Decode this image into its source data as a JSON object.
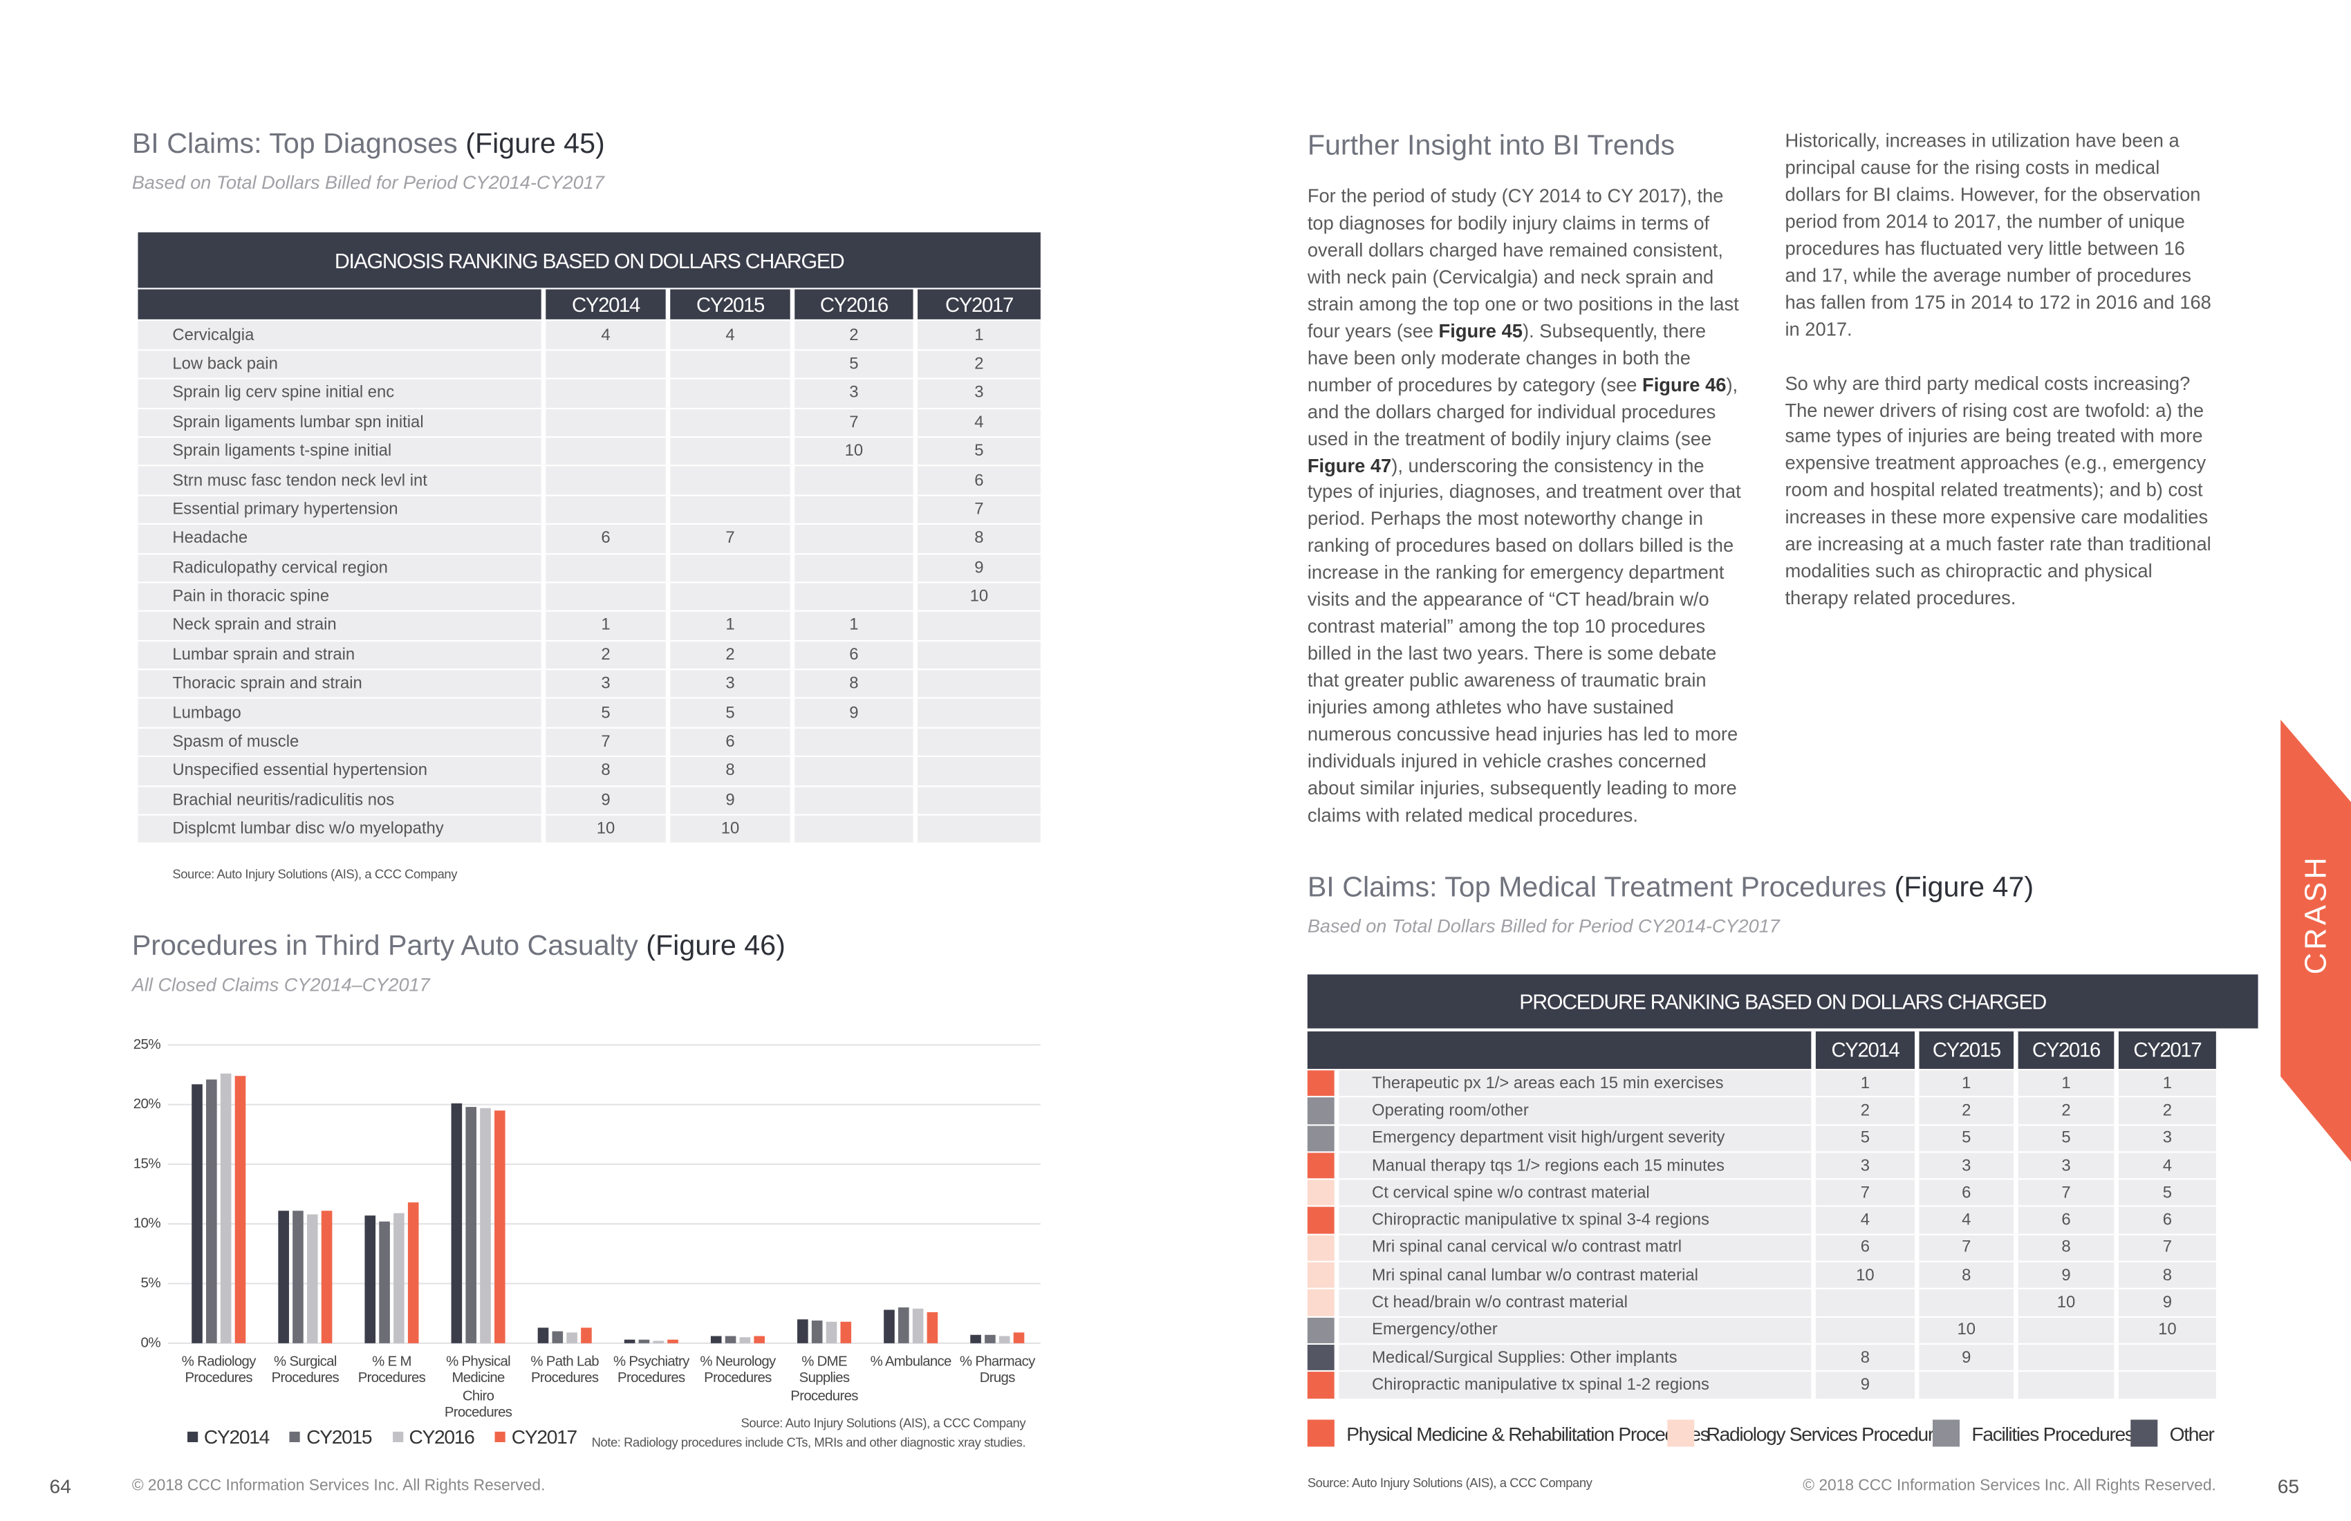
{
  "left_page": {
    "page_number": 64,
    "copyright": "© 2018 CCC Information Services Inc. All Rights Reserved.",
    "figure45": {
      "title": "BI Claims: Top Diagnoses",
      "figure_ref": "(Figure 45)",
      "subtitle": "Based on Total Dollars Billed for Period CY2014-CY2017",
      "table": {
        "caption": "DIAGNOSIS RANKING BASED ON DOLLARS CHARGED",
        "columns": [
          "CY2014",
          "CY2015",
          "CY2016",
          "CY2017"
        ],
        "rows": [
          {
            "label": "Cervicalgia",
            "cells": [
              4,
              4,
              2,
              1
            ]
          },
          {
            "label": "Low back pain",
            "cells": [
              null,
              null,
              5,
              2
            ]
          },
          {
            "label": "Sprain lig cerv spine initial enc",
            "cells": [
              null,
              null,
              3,
              3
            ]
          },
          {
            "label": "Sprain ligaments lumbar spn initial",
            "cells": [
              null,
              null,
              7,
              4
            ]
          },
          {
            "label": "Sprain ligaments t-spine initial",
            "cells": [
              null,
              null,
              10,
              5
            ]
          },
          {
            "label": "Strn musc fasc tendon neck levl int",
            "cells": [
              null,
              null,
              null,
              6
            ]
          },
          {
            "label": "Essential primary hypertension",
            "cells": [
              null,
              null,
              null,
              7
            ]
          },
          {
            "label": "Headache",
            "cells": [
              6,
              7,
              null,
              8
            ]
          },
          {
            "label": "Radiculopathy cervical region",
            "cells": [
              null,
              null,
              null,
              9
            ]
          },
          {
            "label": "Pain in thoracic spine",
            "cells": [
              null,
              null,
              null,
              10
            ]
          },
          {
            "label": "Neck sprain and strain",
            "cells": [
              1,
              1,
              1,
              null
            ]
          },
          {
            "label": "Lumbar sprain and strain",
            "cells": [
              2,
              2,
              6,
              null
            ]
          },
          {
            "label": "Thoracic sprain and strain",
            "cells": [
              3,
              3,
              8,
              null
            ]
          },
          {
            "label": "Lumbago",
            "cells": [
              5,
              5,
              9,
              null
            ]
          },
          {
            "label": "Spasm of muscle",
            "cells": [
              7,
              6,
              null,
              null
            ]
          },
          {
            "label": "Unspecified essential hypertension",
            "cells": [
              8,
              8,
              null,
              null
            ]
          },
          {
            "label": "Brachial neuritis/radiculitis nos",
            "cells": [
              9,
              9,
              null,
              null
            ]
          },
          {
            "label": "Displcmt lumbar disc w/o myelopathy",
            "cells": [
              10,
              10,
              null,
              null
            ]
          }
        ]
      },
      "source": "Source:  Auto Injury Solutions (AIS), a CCC Company"
    },
    "figure46": {
      "title": "Procedures in Third Party Auto Casualty",
      "figure_ref": "(Figure 46)",
      "subtitle": "All Closed Claims CY2014–CY2017",
      "source": "Source:  Auto Injury Solutions (AIS), a CCC Company",
      "note": "Note: Radiology procedures include CTs, MRIs and other diagnostic xray studies."
    }
  },
  "chart_data": {
    "type": "bar",
    "categories": [
      "% Radiology\nProcedures",
      "% Surgical\nProcedures",
      "% E M\nProcedures",
      "% Physical\nMedicine\nChiro Procedures",
      "% Path Lab\nProcedures",
      "% Psychiatry\nProcedures",
      "% Neurology\nProcedures",
      "% DME Supplies\nProcedures",
      "% Ambulance",
      "% Pharmacy\nDrugs"
    ],
    "series": [
      {
        "name": "CY2014",
        "color": "#3b3d4a",
        "values": [
          21.7,
          11.1,
          10.7,
          20.1,
          1.3,
          0.3,
          0.6,
          2.0,
          2.8,
          0.7
        ]
      },
      {
        "name": "CY2015",
        "color": "#6c6d75",
        "values": [
          22.1,
          11.1,
          10.2,
          19.8,
          1.0,
          0.3,
          0.6,
          1.9,
          3.0,
          0.7
        ]
      },
      {
        "name": "CY2016",
        "color": "#c2c2c6",
        "values": [
          22.6,
          10.8,
          10.9,
          19.7,
          0.9,
          0.2,
          0.5,
          1.8,
          2.9,
          0.6
        ]
      },
      {
        "name": "CY2017",
        "color": "#f0654a",
        "values": [
          22.4,
          11.1,
          11.8,
          19.5,
          1.3,
          0.3,
          0.6,
          1.8,
          2.6,
          0.9
        ]
      }
    ],
    "ylim": [
      0,
      25
    ],
    "yticks": [
      {
        "value": 0,
        "label": "0%"
      },
      {
        "value": 5,
        "label": "5%"
      },
      {
        "value": 10,
        "label": "10%"
      },
      {
        "value": 15,
        "label": "15%"
      },
      {
        "value": 20,
        "label": "20%"
      },
      {
        "value": 25,
        "label": "25%"
      }
    ],
    "grid": true
  },
  "right_page": {
    "page_number": 65,
    "copyright": "© 2018 CCC Information Services Inc. All Rights Reserved.",
    "section_tab": "CRASH",
    "insight": {
      "heading": "Further Insight into BI Trends",
      "paragraphs": [
        [
          {
            "text": "For the period of study (CY 2014 to CY 2017), the top diagnoses for bodily injury claims in terms of overall dollars charged have remained consistent, with neck pain (Cervicalgia) and neck sprain and strain among the top one or two positions in the last four years (see "
          },
          {
            "text": "Figure 45",
            "bold": true
          },
          {
            "text": "). Subsequently, there have been only moderate changes in both the number of procedures by category (see "
          },
          {
            "text": "Figure 46",
            "bold": true
          },
          {
            "text": "), and the dollars charged for individual procedures used in the treatment of bodily injury claims (see "
          },
          {
            "text": "Figure 47",
            "bold": true
          },
          {
            "text": "), underscoring the consistency in the types of injuries, diagnoses, and treatment over that period.  Perhaps the most noteworthy change in ranking of procedures based on dollars billed is the increase in the ranking for emergency department visits and the appearance of “CT head/brain w/o contrast material” among the top 10 procedures billed in the last two years.  There is some debate that greater public awareness of traumatic brain injuries among athletes who have sustained numerous concussive head injuries has led to more individuals injured in vehicle crashes concerned about similar injuries, subsequently leading to more claims with related medical procedures."
          }
        ],
        [
          {
            "text": "Historically, increases in utilization have been a principal cause for the rising costs in medical dollars for BI claims.  However, for the observation period from 2014 to 2017, the number of unique procedures has fluctuated very little between 16 and 17, while the average number of procedures has fallen from 175 in 2014 to 172 in 2016 and 168 in 2017."
          }
        ],
        [
          {
            "text": "So why are third party medical costs increasing?  The newer drivers of rising cost are twofold: a) the same types of injuries are being treated with more expensive treatment approaches (e.g., emergency room and hospital related treatments); and b) cost increases in these more expensive care modalities are increasing at a much faster rate than traditional modalities such as chiropractic and physical therapy related procedures."
          }
        ]
      ]
    },
    "figure47": {
      "title": "BI Claims: Top Medical Treatment Procedures",
      "figure_ref": "(Figure 47)",
      "subtitle": "Based on Total Dollars Billed for Period CY2014-CY2017",
      "table": {
        "caption": "PROCEDURE RANKING BASED ON DOLLARS CHARGED",
        "columns": [
          "CY2014",
          "CY2015",
          "CY2016",
          "CY2017"
        ],
        "rows": [
          {
            "color": "#f0654a",
            "label": "Therapeutic px 1/> areas each 15 min exercises",
            "cells": [
              1,
              1,
              1,
              1
            ]
          },
          {
            "color": "#8e8e96",
            "label": "Operating room/other",
            "cells": [
              2,
              2,
              2,
              2
            ]
          },
          {
            "color": "#8e8e96",
            "label": "Emergency department visit high/urgent severity",
            "cells": [
              5,
              5,
              5,
              3
            ]
          },
          {
            "color": "#f0654a",
            "label": "Manual therapy tqs 1/> regions each 15 minutes",
            "cells": [
              3,
              3,
              3,
              4
            ]
          },
          {
            "color": "#fcdacd",
            "label": "Ct cervical spine w/o contrast material",
            "cells": [
              7,
              6,
              7,
              5
            ]
          },
          {
            "color": "#f0654a",
            "label": "Chiropractic manipulative tx spinal 3-4 regions",
            "cells": [
              4,
              4,
              6,
              6
            ]
          },
          {
            "color": "#fcdacd",
            "label": "Mri spinal canal cervical w/o contrast matrl",
            "cells": [
              6,
              7,
              8,
              7
            ]
          },
          {
            "color": "#fcdacd",
            "label": "Mri spinal canal lumbar w/o contrast material",
            "cells": [
              10,
              8,
              9,
              8
            ]
          },
          {
            "color": "#fcdacd",
            "label": "Ct head/brain w/o contrast material",
            "cells": [
              null,
              null,
              10,
              9
            ]
          },
          {
            "color": "#8e8e96",
            "label": "Emergency/other",
            "cells": [
              null,
              10,
              null,
              10
            ]
          },
          {
            "color": "#545664",
            "label": "Medical/Surgical Supplies: Other implants",
            "cells": [
              8,
              9,
              null,
              null
            ]
          },
          {
            "color": "#f0654a",
            "label": "Chiropractic manipulative tx spinal 1-2 regions",
            "cells": [
              9,
              null,
              null,
              null
            ]
          }
        ]
      },
      "legend": [
        {
          "name": "Physical Medicine & Rehabilitation Procedures",
          "color": "#f0654a"
        },
        {
          "name": "Radiology Services Procedures",
          "color": "#fcdacd"
        },
        {
          "name": "Facilities Procedures",
          "color": "#8e8e96"
        },
        {
          "name": "Other",
          "color": "#545664"
        }
      ],
      "source": "Source:  Auto Injury Solutions (AIS), a CCC Company"
    }
  }
}
